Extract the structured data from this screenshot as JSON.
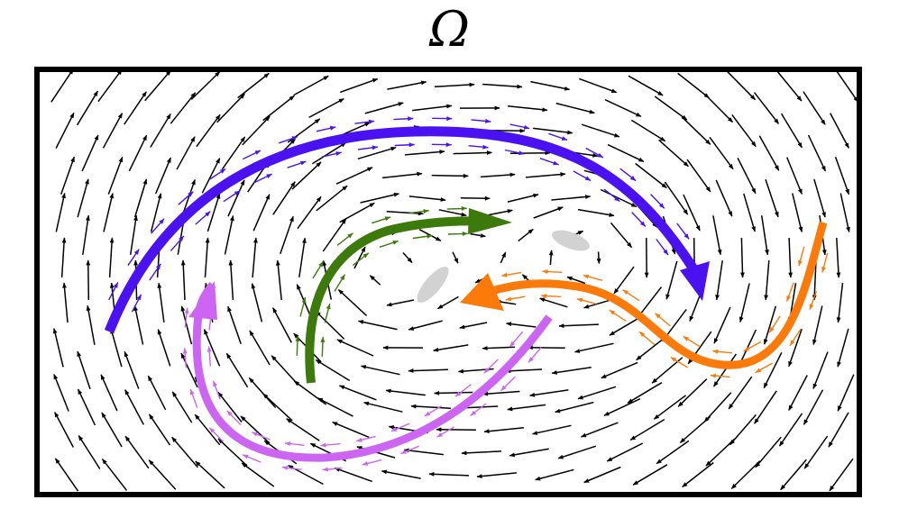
{
  "title": "Ω",
  "colors": {
    "frame": "#000000",
    "field_arrows": "#000000",
    "blue_flow": "#4a12f0",
    "green_flow": "#3d7a0c",
    "orange_flow": "#fb7a0a",
    "violet_flow": "#cc66f2",
    "stagnation_regions": "#d2d2d2"
  },
  "diagram": {
    "domain_label": "Ω",
    "field_arrow_icon": "arrow-icon",
    "flows": [
      {
        "id": "blue",
        "color_key": "blue_flow",
        "icon": "arrow-icon"
      },
      {
        "id": "green",
        "color_key": "green_flow",
        "icon": "arrow-icon"
      },
      {
        "id": "orange",
        "color_key": "orange_flow",
        "icon": "arrow-icon"
      },
      {
        "id": "violet",
        "color_key": "violet_flow",
        "icon": "arrow-icon"
      }
    ],
    "stagnation_regions": 2
  }
}
